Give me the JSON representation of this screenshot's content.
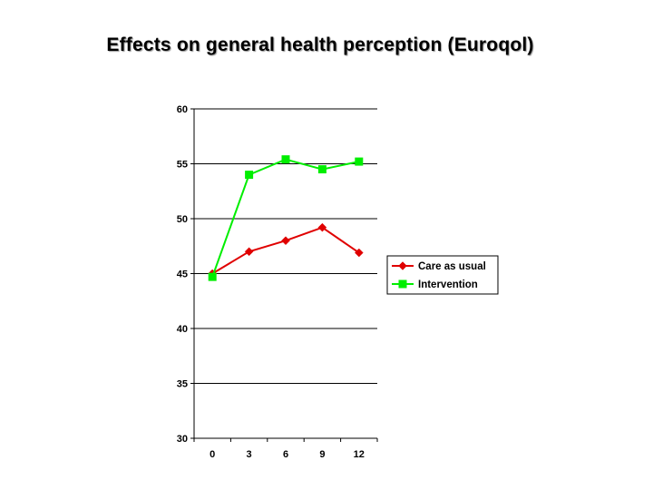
{
  "title": "Effects on general health perception (Euroqol)",
  "chart_data": {
    "type": "line",
    "title": "Effects on general health perception (Euroqol)",
    "xlabel": "",
    "ylabel": "",
    "x": [
      0,
      3,
      6,
      9,
      12
    ],
    "x_tick_labels": [
      "0",
      "3",
      "6",
      "9",
      "12"
    ],
    "ylim": [
      30,
      60
    ],
    "y_ticks": [
      30,
      35,
      40,
      45,
      50,
      55,
      60
    ],
    "y_tick_labels": [
      "30",
      "35",
      "40",
      "45",
      "50",
      "55",
      "60"
    ],
    "grid": "horizontal",
    "legend_position": "right",
    "series": [
      {
        "name": "Care as usual",
        "values": [
          45.0,
          47.0,
          48.0,
          49.2,
          46.9
        ],
        "color": "#e00000",
        "marker": "diamond"
      },
      {
        "name": "Intervention",
        "values": [
          44.7,
          54.0,
          55.4,
          54.5,
          55.2
        ],
        "color": "#00ee00",
        "marker": "square"
      }
    ]
  }
}
